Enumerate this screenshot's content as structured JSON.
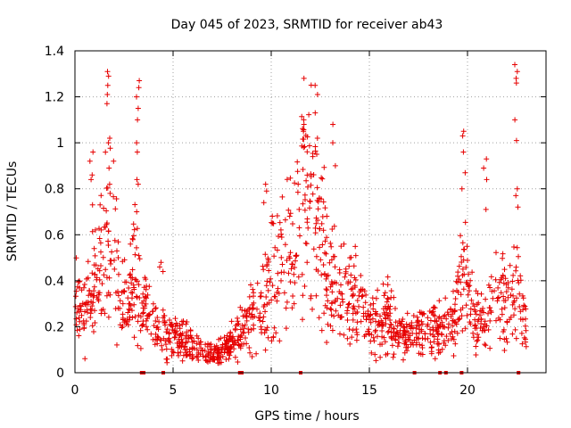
{
  "chart_data": {
    "type": "scatter",
    "title": "Day 045 of 2023, SRMTID for receiver ab43",
    "xlabel": "GPS time / hours",
    "ylabel": "SRMTID / TECUs",
    "xlim": [
      0,
      24
    ],
    "ylim": [
      0,
      1.4
    ],
    "grid": true,
    "x_ticks": [
      0,
      5,
      10,
      15,
      20
    ],
    "x_tick_labels": [
      "0",
      "5",
      "10",
      "15",
      "20"
    ],
    "y_ticks": [
      0,
      0.2,
      0.4,
      0.6,
      0.8,
      1.0,
      1.2,
      1.4
    ],
    "y_tick_labels": [
      "0",
      "0.2",
      "0.4",
      "0.6",
      "0.8",
      "1",
      "1.2",
      "1.4"
    ],
    "marker": "+",
    "color": "#e60000",
    "series": [
      {
        "name": "SRMTID",
        "profile_x": [
          0,
          0.5,
          1.0,
          1.5,
          1.8,
          2.2,
          2.7,
          3.0,
          3.4,
          3.8,
          4.3,
          5.0,
          6.0,
          6.7,
          7.5,
          8.0,
          8.7,
          9.2,
          9.6,
          10.0,
          10.5,
          11.0,
          11.6,
          12.2,
          12.8,
          13.4,
          14.0,
          14.5,
          15.0,
          15.5,
          15.8,
          16.5,
          17.5,
          18.5,
          19.3,
          19.7,
          20.3,
          21.0,
          21.5,
          22.0,
          22.5,
          23.0
        ],
        "profile_y": [
          0.3,
          0.25,
          0.42,
          0.55,
          0.65,
          0.4,
          0.28,
          0.45,
          0.3,
          0.22,
          0.15,
          0.16,
          0.12,
          0.08,
          0.09,
          0.13,
          0.2,
          0.25,
          0.32,
          0.42,
          0.48,
          0.58,
          0.75,
          0.72,
          0.5,
          0.35,
          0.35,
          0.32,
          0.22,
          0.2,
          0.28,
          0.15,
          0.17,
          0.19,
          0.2,
          0.45,
          0.22,
          0.22,
          0.4,
          0.28,
          0.35,
          0.18
        ],
        "point_count": 1400,
        "spikes": [
          {
            "x": 1.7,
            "values": [
              1.31,
              1.29,
              1.25,
              1.21,
              1.17,
              1.02,
              1.0,
              0.89,
              0.82,
              0.78
            ]
          },
          {
            "x": 3.2,
            "values": [
              1.27,
              1.24,
              1.2,
              1.15,
              1.1,
              1.0,
              0.96,
              0.84,
              0.82,
              0.7
            ]
          },
          {
            "x": 0.85,
            "values": [
              0.96,
              0.92,
              0.86,
              0.84,
              0.73
            ]
          },
          {
            "x": 11.6,
            "values": [
              1.28,
              1.1,
              1.08,
              1.05,
              0.98
            ]
          },
          {
            "x": 12.3,
            "values": [
              1.25,
              1.21,
              1.13,
              1.02,
              0.95
            ]
          },
          {
            "x": 13.2,
            "values": [
              1.08,
              1.0,
              0.9
            ]
          },
          {
            "x": 19.8,
            "values": [
              1.05,
              1.03,
              0.96,
              0.87,
              0.8
            ]
          },
          {
            "x": 20.9,
            "values": [
              0.93,
              0.89,
              0.84,
              0.71
            ]
          },
          {
            "x": 22.5,
            "values": [
              1.34,
              1.31,
              1.28,
              1.26,
              1.1,
              1.01,
              0.8,
              0.77,
              0.72
            ]
          },
          {
            "x": 9.7,
            "values": [
              0.82,
              0.79,
              0.74
            ]
          },
          {
            "x": 4.4,
            "values": [
              0.48,
              0.46,
              0.44
            ]
          }
        ],
        "zero_points_x": [
          3.4,
          3.5,
          4.5,
          8.4,
          8.5,
          11.5,
          17.3,
          18.6,
          18.9,
          19.7,
          22.6
        ]
      }
    ]
  }
}
